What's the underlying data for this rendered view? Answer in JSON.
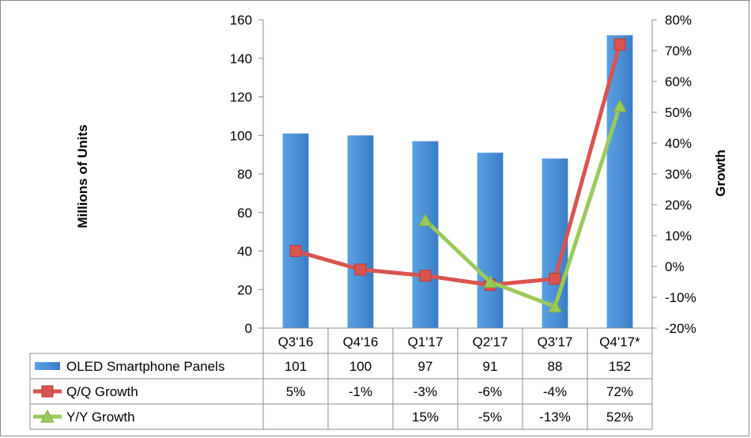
{
  "chart_data": {
    "type": "bar",
    "categories": [
      "Q3'16",
      "Q4'16",
      "Q1'17",
      "Q2'17",
      "Q3'17",
      "Q4'17*"
    ],
    "series": [
      {
        "name": "OLED Smartphone Panels",
        "type": "bar",
        "axis": "left",
        "color": "#4a8fd6",
        "values": [
          101,
          100,
          97,
          91,
          88,
          152
        ]
      },
      {
        "name": "Q/Q Growth",
        "type": "line",
        "axis": "right",
        "color": "#d9534f",
        "marker": "square",
        "values": [
          5,
          -1,
          -3,
          -6,
          -4,
          72
        ]
      },
      {
        "name": "Y/Y Growth",
        "type": "line",
        "axis": "right",
        "color": "#9bc95a",
        "marker": "triangle",
        "values": [
          null,
          null,
          15,
          -5,
          -13,
          52
        ]
      }
    ],
    "table": {
      "rows": [
        [
          "101",
          "100",
          "97",
          "91",
          "88",
          "152"
        ],
        [
          "5%",
          "-1%",
          "-3%",
          "-6%",
          "-4%",
          "72%"
        ],
        [
          "",
          "",
          "15%",
          "-5%",
          "-13%",
          "52%"
        ]
      ]
    },
    "ylabel": "Millions of Units",
    "y2label": "Growth",
    "ylim": [
      0,
      160
    ],
    "y2lim": [
      -20,
      80
    ],
    "yticks": [
      "0",
      "20",
      "40",
      "60",
      "80",
      "100",
      "120",
      "140",
      "160"
    ],
    "y2ticks": [
      "-20%",
      "-10%",
      "0%",
      "10%",
      "20%",
      "30%",
      "40%",
      "50%",
      "60%",
      "70%",
      "80%"
    ],
    "grid": false,
    "legend": "data-table"
  }
}
